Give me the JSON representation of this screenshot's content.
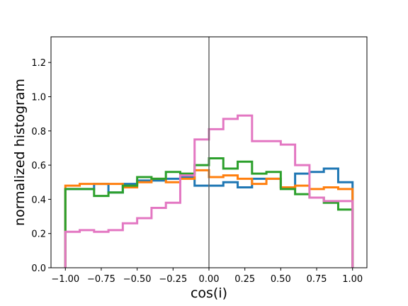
{
  "chart_data": {
    "type": "step-histogram",
    "title": "",
    "xlabel": "cos(i)",
    "ylabel": "normalized histogram",
    "xlim": [
      -1.1,
      1.1
    ],
    "ylim": [
      0.0,
      1.35
    ],
    "xticks": [
      -1.0,
      -0.75,
      -0.5,
      -0.25,
      0.0,
      0.25,
      0.5,
      0.75,
      1.0
    ],
    "xtick_labels": [
      "−1.00",
      "−0.75",
      "−0.50",
      "−0.25",
      "0.00",
      "0.25",
      "0.50",
      "0.75",
      "1.00"
    ],
    "yticks": [
      0.0,
      0.2,
      0.4,
      0.6,
      0.8,
      1.0,
      1.2
    ],
    "ytick_labels": [
      "0.0",
      "0.2",
      "0.4",
      "0.6",
      "0.8",
      "1.0",
      "1.2"
    ],
    "grid": false,
    "vertical_line": {
      "x": 0.0,
      "color": "#666666"
    },
    "bin_edges": [
      -1.0,
      -0.9,
      -0.8,
      -0.7,
      -0.6,
      -0.5,
      -0.4,
      -0.3,
      -0.2,
      -0.1,
      0.0,
      0.1,
      0.2,
      0.3,
      0.4,
      0.5,
      0.6,
      0.7,
      0.8,
      0.9,
      1.0
    ],
    "series": [
      {
        "color": "#1f77b4",
        "values": [
          0.46,
          0.46,
          0.49,
          0.44,
          0.49,
          0.51,
          0.51,
          0.52,
          0.53,
          0.48,
          0.48,
          0.5,
          0.47,
          0.52,
          0.52,
          0.47,
          0.55,
          0.56,
          0.58,
          0.5
        ]
      },
      {
        "color": "#ff7f0e",
        "values": [
          0.48,
          0.49,
          0.49,
          0.49,
          0.47,
          0.5,
          0.52,
          0.5,
          0.52,
          0.57,
          0.53,
          0.54,
          0.52,
          0.49,
          0.52,
          0.47,
          0.48,
          0.46,
          0.47,
          0.46
        ]
      },
      {
        "color": "#2ca02c",
        "values": [
          0.46,
          0.46,
          0.42,
          0.44,
          0.48,
          0.53,
          0.52,
          0.56,
          0.55,
          0.6,
          0.64,
          0.58,
          0.62,
          0.55,
          0.56,
          0.46,
          0.43,
          0.41,
          0.38,
          0.34
        ]
      },
      {
        "color": "#e377c2",
        "values": [
          0.21,
          0.22,
          0.21,
          0.22,
          0.26,
          0.29,
          0.35,
          0.38,
          0.54,
          0.75,
          0.81,
          0.87,
          0.89,
          0.74,
          0.74,
          0.72,
          0.6,
          0.41,
          0.39,
          0.39
        ]
      }
    ]
  }
}
